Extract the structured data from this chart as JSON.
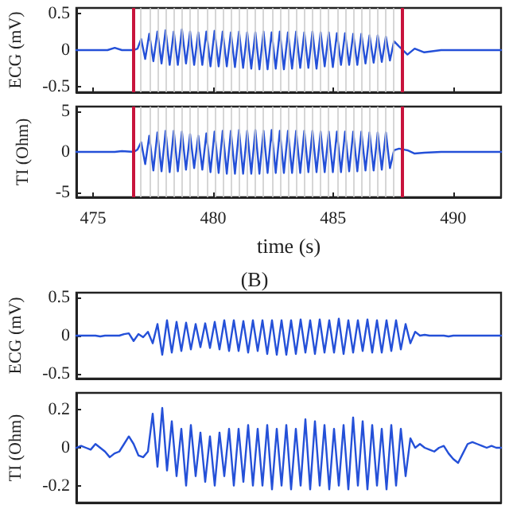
{
  "chart_data": [
    {
      "type": "line",
      "ylabel": "ECG (mV)",
      "tick_labels": "y",
      "xlim": [
        474.3,
        492
      ],
      "xticks": [
        475,
        480,
        485,
        490
      ],
      "ylim": [
        -0.57,
        0.57
      ],
      "yticks": [
        -0.5,
        0,
        0.5
      ],
      "grid": false,
      "x": [
        474.3,
        475,
        475.6,
        475.9,
        476.2,
        476.7,
        476.85,
        477.0,
        477.17,
        477.34,
        477.51,
        477.68,
        477.85,
        478.02,
        478.19,
        478.36,
        478.53,
        478.7,
        478.87,
        479.04,
        479.21,
        479.38,
        479.55,
        479.72,
        479.89,
        480.06,
        480.23,
        480.4,
        480.57,
        480.74,
        480.91,
        481.08,
        481.25,
        481.42,
        481.59,
        481.76,
        481.93,
        482.1,
        482.27,
        482.44,
        482.61,
        482.78,
        482.95,
        483.12,
        483.29,
        483.46,
        483.63,
        483.8,
        483.97,
        484.14,
        484.31,
        484.48,
        484.65,
        484.82,
        484.99,
        485.16,
        485.33,
        485.5,
        485.67,
        485.84,
        486.01,
        486.18,
        486.35,
        486.52,
        486.69,
        486.86,
        487.03,
        487.2,
        487.37,
        487.54,
        487.75,
        488.1,
        488.4,
        488.8,
        489.5,
        490.5,
        492
      ],
      "series": [
        {
          "color": "#2450d8",
          "values": [
            0,
            0,
            0,
            0.03,
            0,
            0,
            0.02,
            0.15,
            -0.12,
            0.22,
            -0.15,
            0.25,
            -0.18,
            0.27,
            -0.2,
            0.25,
            -0.2,
            0.28,
            -0.18,
            0.25,
            -0.2,
            0.24,
            -0.2,
            0.25,
            -0.22,
            0.26,
            -0.22,
            0.25,
            -0.22,
            0.24,
            -0.23,
            0.25,
            -0.24,
            0.24,
            -0.25,
            0.24,
            -0.26,
            0.25,
            -0.26,
            0.24,
            -0.25,
            0.25,
            -0.26,
            0.24,
            -0.25,
            0.25,
            -0.24,
            0.24,
            -0.24,
            0.25,
            -0.25,
            0.24,
            -0.22,
            0.24,
            -0.23,
            0.23,
            -0.2,
            0.23,
            -0.2,
            0.22,
            -0.2,
            0.22,
            -0.18,
            0.2,
            -0.17,
            0.2,
            -0.16,
            0.18,
            -0.14,
            0.12,
            0.05,
            -0.06,
            0.02,
            -0.03,
            0,
            0,
            0
          ]
        }
      ],
      "ref_lines": [
        {
          "axis": "x",
          "value": 476.7,
          "color": "#c8143c"
        },
        {
          "axis": "x",
          "value": 487.9,
          "color": "#c8143c"
        },
        {
          "axis": "x",
          "value": 477.0,
          "color": "#cccccc"
        },
        {
          "axis": "x",
          "value": 477.34,
          "color": "#cccccc"
        },
        {
          "axis": "x",
          "value": 477.68,
          "color": "#cccccc"
        },
        {
          "axis": "x",
          "value": 478.02,
          "color": "#cccccc"
        },
        {
          "axis": "x",
          "value": 478.36,
          "color": "#cccccc"
        },
        {
          "axis": "x",
          "value": 478.7,
          "color": "#cccccc"
        },
        {
          "axis": "x",
          "value": 479.04,
          "color": "#cccccc"
        },
        {
          "axis": "x",
          "value": 479.38,
          "color": "#cccccc"
        },
        {
          "axis": "x",
          "value": 479.72,
          "color": "#cccccc"
        },
        {
          "axis": "x",
          "value": 480.06,
          "color": "#cccccc"
        },
        {
          "axis": "x",
          "value": 480.4,
          "color": "#cccccc"
        },
        {
          "axis": "x",
          "value": 480.74,
          "color": "#cccccc"
        },
        {
          "axis": "x",
          "value": 481.08,
          "color": "#cccccc"
        },
        {
          "axis": "x",
          "value": 481.42,
          "color": "#cccccc"
        },
        {
          "axis": "x",
          "value": 481.76,
          "color": "#cccccc"
        },
        {
          "axis": "x",
          "value": 482.1,
          "color": "#cccccc"
        },
        {
          "axis": "x",
          "value": 482.44,
          "color": "#cccccc"
        },
        {
          "axis": "x",
          "value": 482.78,
          "color": "#cccccc"
        },
        {
          "axis": "x",
          "value": 483.12,
          "color": "#cccccc"
        },
        {
          "axis": "x",
          "value": 483.46,
          "color": "#cccccc"
        },
        {
          "axis": "x",
          "value": 483.8,
          "color": "#cccccc"
        },
        {
          "axis": "x",
          "value": 484.14,
          "color": "#cccccc"
        },
        {
          "axis": "x",
          "value": 484.48,
          "color": "#cccccc"
        },
        {
          "axis": "x",
          "value": 484.82,
          "color": "#cccccc"
        },
        {
          "axis": "x",
          "value": 485.16,
          "color": "#cccccc"
        },
        {
          "axis": "x",
          "value": 485.5,
          "color": "#cccccc"
        },
        {
          "axis": "x",
          "value": 485.84,
          "color": "#cccccc"
        },
        {
          "axis": "x",
          "value": 486.18,
          "color": "#cccccc"
        },
        {
          "axis": "x",
          "value": 486.52,
          "color": "#cccccc"
        },
        {
          "axis": "x",
          "value": 486.86,
          "color": "#cccccc"
        },
        {
          "axis": "x",
          "value": 487.2,
          "color": "#cccccc"
        },
        {
          "axis": "x",
          "value": 487.54,
          "color": "#cccccc"
        }
      ]
    },
    {
      "type": "line",
      "ylabel": "TI (Ohm)",
      "xlabel": "time (s)",
      "xlim": [
        474.3,
        492
      ],
      "xticks": [
        475,
        480,
        485,
        490
      ],
      "ylim": [
        -5.6,
        5.6
      ],
      "yticks": [
        -5,
        0,
        5
      ],
      "grid": false,
      "x": [
        474.3,
        475,
        475.6,
        475.9,
        476.2,
        476.7,
        476.85,
        477.0,
        477.17,
        477.34,
        477.51,
        477.68,
        477.85,
        478.02,
        478.19,
        478.36,
        478.53,
        478.7,
        478.87,
        479.04,
        479.21,
        479.38,
        479.55,
        479.72,
        479.89,
        480.06,
        480.23,
        480.4,
        480.57,
        480.74,
        480.91,
        481.08,
        481.25,
        481.42,
        481.59,
        481.76,
        481.93,
        482.1,
        482.27,
        482.44,
        482.61,
        482.78,
        482.95,
        483.12,
        483.29,
        483.46,
        483.63,
        483.8,
        483.97,
        484.14,
        484.31,
        484.48,
        484.65,
        484.82,
        484.99,
        485.16,
        485.33,
        485.5,
        485.67,
        485.84,
        486.01,
        486.18,
        486.35,
        486.52,
        486.69,
        486.86,
        487.03,
        487.2,
        487.37,
        487.54,
        487.75,
        488.1,
        488.4,
        488.8,
        489.5,
        490.5,
        492
      ],
      "series": [
        {
          "color": "#2450d8",
          "values": [
            0,
            0,
            0,
            0,
            0.1,
            0,
            0.3,
            1.2,
            -1.5,
            2.0,
            -2.3,
            2.4,
            -2.4,
            2.6,
            -2.5,
            2.6,
            -2.4,
            2.5,
            -2.2,
            2.2,
            -2.0,
            2.0,
            -2.2,
            2.3,
            -2.5,
            2.5,
            -2.6,
            2.6,
            -2.7,
            2.6,
            -2.7,
            2.7,
            -2.7,
            2.6,
            -2.7,
            2.7,
            -2.7,
            2.6,
            -2.6,
            2.7,
            -2.6,
            2.6,
            -2.6,
            2.6,
            -2.6,
            2.6,
            -2.6,
            2.6,
            -2.5,
            2.6,
            -2.5,
            2.5,
            -2.5,
            2.5,
            -2.5,
            2.5,
            -2.5,
            2.5,
            -2.4,
            2.5,
            -2.4,
            2.5,
            -2.3,
            2.4,
            -2.3,
            2.4,
            -2.2,
            2.4,
            -2.0,
            0.2,
            0.4,
            0.2,
            -0.2,
            -0.1,
            0,
            0,
            0
          ]
        }
      ],
      "ref_lines": [
        {
          "axis": "x",
          "value": 476.7,
          "color": "#c8143c"
        },
        {
          "axis": "x",
          "value": 487.9,
          "color": "#c8143c"
        },
        {
          "axis": "x",
          "value": 477.0,
          "color": "#cccccc"
        },
        {
          "axis": "x",
          "value": 477.34,
          "color": "#cccccc"
        },
        {
          "axis": "x",
          "value": 477.68,
          "color": "#cccccc"
        },
        {
          "axis": "x",
          "value": 478.02,
          "color": "#cccccc"
        },
        {
          "axis": "x",
          "value": 478.36,
          "color": "#cccccc"
        },
        {
          "axis": "x",
          "value": 478.7,
          "color": "#cccccc"
        },
        {
          "axis": "x",
          "value": 479.04,
          "color": "#cccccc"
        },
        {
          "axis": "x",
          "value": 479.38,
          "color": "#cccccc"
        },
        {
          "axis": "x",
          "value": 479.72,
          "color": "#cccccc"
        },
        {
          "axis": "x",
          "value": 480.06,
          "color": "#cccccc"
        },
        {
          "axis": "x",
          "value": 480.4,
          "color": "#cccccc"
        },
        {
          "axis": "x",
          "value": 480.74,
          "color": "#cccccc"
        },
        {
          "axis": "x",
          "value": 481.08,
          "color": "#cccccc"
        },
        {
          "axis": "x",
          "value": 481.42,
          "color": "#cccccc"
        },
        {
          "axis": "x",
          "value": 481.76,
          "color": "#cccccc"
        },
        {
          "axis": "x",
          "value": 482.1,
          "color": "#cccccc"
        },
        {
          "axis": "x",
          "value": 482.44,
          "color": "#cccccc"
        },
        {
          "axis": "x",
          "value": 482.78,
          "color": "#cccccc"
        },
        {
          "axis": "x",
          "value": 483.12,
          "color": "#cccccc"
        },
        {
          "axis": "x",
          "value": 483.46,
          "color": "#cccccc"
        },
        {
          "axis": "x",
          "value": 483.8,
          "color": "#cccccc"
        },
        {
          "axis": "x",
          "value": 484.14,
          "color": "#cccccc"
        },
        {
          "axis": "x",
          "value": 484.48,
          "color": "#cccccc"
        },
        {
          "axis": "x",
          "value": 484.82,
          "color": "#cccccc"
        },
        {
          "axis": "x",
          "value": 485.16,
          "color": "#cccccc"
        },
        {
          "axis": "x",
          "value": 485.5,
          "color": "#cccccc"
        },
        {
          "axis": "x",
          "value": 485.84,
          "color": "#cccccc"
        },
        {
          "axis": "x",
          "value": 486.18,
          "color": "#cccccc"
        },
        {
          "axis": "x",
          "value": 486.52,
          "color": "#cccccc"
        },
        {
          "axis": "x",
          "value": 486.86,
          "color": "#cccccc"
        },
        {
          "axis": "x",
          "value": 487.2,
          "color": "#cccccc"
        },
        {
          "axis": "x",
          "value": 487.54,
          "color": "#cccccc"
        }
      ]
    },
    {
      "type": "line",
      "title": "(B)",
      "ylabel": "ECG (mV)",
      "tick_labels": "y",
      "ylim": [
        -0.56,
        0.56
      ],
      "yticks": [
        -0.5,
        0,
        0.5
      ],
      "grid": false,
      "categories": [
        null,
        null,
        null,
        null,
        null,
        null,
        null,
        null,
        null,
        null,
        null,
        null,
        null,
        null,
        null,
        null,
        null,
        null,
        null,
        null,
        null,
        null,
        null,
        null,
        null,
        null,
        null,
        null,
        null,
        null,
        null,
        null,
        null,
        null,
        null,
        null,
        null,
        null,
        null,
        null,
        null,
        null,
        null,
        null,
        null,
        null,
        null,
        null,
        null,
        null,
        null,
        null,
        null,
        null,
        null,
        null,
        null,
        null,
        null,
        null,
        null,
        null,
        null,
        null,
        null,
        null,
        null,
        null,
        null,
        null,
        null,
        null,
        null,
        null,
        null,
        null,
        null,
        null,
        null,
        null,
        null,
        null,
        null,
        null,
        null,
        null,
        null,
        null,
        null,
        null
      ],
      "series": [
        {
          "color": "#2450d8",
          "values": [
            0,
            0,
            0,
            0,
            0,
            -0.01,
            0,
            0,
            0,
            0,
            0.02,
            0.03,
            -0.07,
            0.02,
            -0.02,
            0.05,
            -0.1,
            0.15,
            -0.25,
            0.2,
            -0.22,
            0.18,
            -0.2,
            0.17,
            -0.18,
            0.15,
            -0.15,
            0.16,
            -0.16,
            0.18,
            -0.18,
            0.2,
            -0.2,
            0.2,
            -0.2,
            0.19,
            -0.22,
            0.2,
            -0.2,
            0.2,
            -0.24,
            0.2,
            -0.25,
            0.2,
            -0.25,
            0.2,
            -0.24,
            0.21,
            -0.22,
            0.2,
            -0.24,
            0.21,
            -0.22,
            0.2,
            -0.22,
            0.22,
            -0.24,
            0.2,
            -0.22,
            0.2,
            -0.2,
            0.21,
            -0.22,
            0.2,
            -0.22,
            0.2,
            -0.2,
            0.2,
            -0.18,
            0.15,
            -0.1,
            0.05,
            0,
            0.01,
            0,
            0,
            0,
            0,
            -0.01,
            0,
            0,
            0,
            0,
            0,
            0,
            0,
            0,
            0,
            0,
            0
          ]
        }
      ]
    },
    {
      "type": "line",
      "ylabel": "TI (Ohm)",
      "tick_labels": "y",
      "ylim": [
        -0.29,
        0.29
      ],
      "yticks": [
        -0.2,
        0,
        0.2
      ],
      "grid": false,
      "categories": [
        null,
        null,
        null,
        null,
        null,
        null,
        null,
        null,
        null,
        null,
        null,
        null,
        null,
        null,
        null,
        null,
        null,
        null,
        null,
        null,
        null,
        null,
        null,
        null,
        null,
        null,
        null,
        null,
        null,
        null,
        null,
        null,
        null,
        null,
        null,
        null,
        null,
        null,
        null,
        null,
        null,
        null,
        null,
        null,
        null,
        null,
        null,
        null,
        null,
        null,
        null,
        null,
        null,
        null,
        null,
        null,
        null,
        null,
        null,
        null,
        null,
        null,
        null,
        null,
        null,
        null,
        null,
        null,
        null,
        null,
        null,
        null,
        null,
        null,
        null,
        null,
        null,
        null,
        null,
        null,
        null,
        null,
        null,
        null,
        null,
        null,
        null,
        null,
        null,
        null
      ],
      "series": [
        {
          "color": "#2450d8",
          "values": [
            0,
            0.01,
            0,
            -0.01,
            0.02,
            0,
            -0.02,
            -0.05,
            -0.03,
            -0.02,
            0.02,
            0.06,
            0.02,
            -0.04,
            -0.05,
            -0.02,
            0.18,
            -0.1,
            0.21,
            -0.12,
            0.14,
            -0.15,
            0.1,
            -0.2,
            0.12,
            -0.15,
            0.08,
            -0.18,
            0.06,
            -0.2,
            0.08,
            -0.15,
            0.1,
            -0.2,
            0.1,
            -0.18,
            0.12,
            -0.2,
            0.1,
            -0.2,
            0.12,
            -0.22,
            0.1,
            -0.2,
            0.12,
            -0.22,
            0.1,
            -0.2,
            0.15,
            -0.22,
            0.14,
            -0.2,
            0.12,
            -0.22,
            0.1,
            -0.2,
            0.12,
            -0.22,
            0.16,
            -0.2,
            0.14,
            -0.22,
            0.12,
            -0.2,
            0.1,
            -0.22,
            0.12,
            -0.2,
            0.1,
            -0.15,
            0.05,
            0,
            0.02,
            0,
            -0.01,
            -0.02,
            0,
            0.01,
            -0.03,
            -0.06,
            -0.08,
            -0.03,
            0.02,
            0.03,
            0.02,
            0.01,
            0,
            0.01,
            0,
            0
          ]
        }
      ]
    }
  ]
}
